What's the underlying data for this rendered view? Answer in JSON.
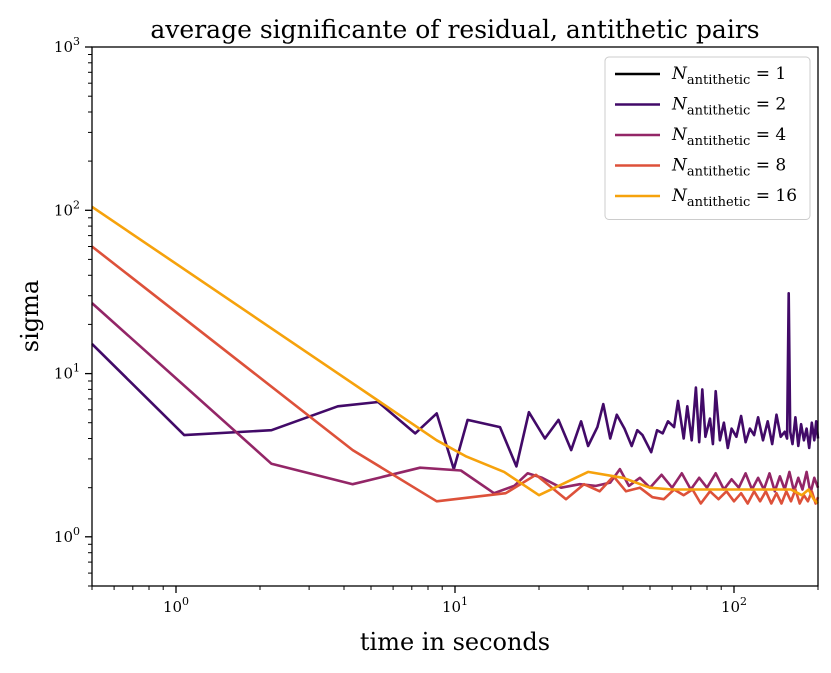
{
  "chart_data": {
    "type": "line",
    "title": "average significante of residual, antithetic pairs",
    "xlabel": "time in seconds",
    "ylabel": "sigma",
    "xscale": "log",
    "yscale": "log",
    "xlim": [
      0.5,
      200
    ],
    "ylim": [
      0.5,
      1000
    ],
    "x_ticks": [
      {
        "value": 1,
        "base": "10",
        "exp": "0"
      },
      {
        "value": 10,
        "base": "10",
        "exp": "1"
      },
      {
        "value": 100,
        "base": "10",
        "exp": "2"
      }
    ],
    "y_ticks": [
      {
        "value": 1,
        "base": "10",
        "exp": "0"
      },
      {
        "value": 10,
        "base": "10",
        "exp": "1"
      },
      {
        "value": 100,
        "base": "10",
        "exp": "2"
      },
      {
        "value": 1000,
        "base": "10",
        "exp": "3"
      }
    ],
    "legend_location": "top-right",
    "series": [
      {
        "name": "N_antithetic = 1",
        "label_main": "N",
        "label_sub": "antithetic",
        "label_value": " = 1",
        "color": "#000000",
        "points": []
      },
      {
        "name": "N_antithetic = 2",
        "label_main": "N",
        "label_sub": "antithetic",
        "label_value": " = 2",
        "color": "#420a68",
        "points": [
          [
            0.5,
            15.2
          ],
          [
            1.07,
            4.2
          ],
          [
            2.2,
            4.5
          ],
          [
            3.8,
            6.3
          ],
          [
            5.3,
            6.7
          ],
          [
            7.2,
            4.3
          ],
          [
            8.6,
            5.7
          ],
          [
            9.9,
            2.6
          ],
          [
            11.1,
            5.2
          ],
          [
            14.5,
            4.7
          ],
          [
            16.6,
            2.7
          ],
          [
            18.4,
            5.8
          ],
          [
            21.0,
            4.0
          ],
          [
            23.5,
            5.2
          ],
          [
            26.1,
            3.4
          ],
          [
            28.3,
            5.1
          ],
          [
            30.0,
            3.6
          ],
          [
            32.4,
            4.7
          ],
          [
            34.0,
            6.5
          ],
          [
            36.0,
            4.0
          ],
          [
            38.0,
            5.6
          ],
          [
            40.5,
            4.6
          ],
          [
            43.0,
            3.6
          ],
          [
            45.0,
            4.5
          ],
          [
            47.0,
            4.2
          ],
          [
            50.5,
            3.3
          ],
          [
            53.0,
            4.5
          ],
          [
            55.5,
            4.3
          ],
          [
            58.0,
            5.1
          ],
          [
            61.0,
            4.7
          ],
          [
            63.0,
            6.8
          ],
          [
            66.0,
            4.0
          ],
          [
            68.0,
            6.3
          ],
          [
            70.5,
            3.9
          ],
          [
            73.0,
            8.2
          ],
          [
            75.0,
            3.8
          ],
          [
            77.0,
            8.0
          ],
          [
            79.0,
            4.1
          ],
          [
            82.0,
            5.3
          ],
          [
            84.0,
            3.7
          ],
          [
            86.0,
            7.8
          ],
          [
            89.0,
            3.9
          ],
          [
            92.0,
            5.0
          ],
          [
            95.0,
            3.5
          ],
          [
            98.0,
            4.6
          ],
          [
            102.0,
            4.1
          ],
          [
            106.0,
            5.5
          ],
          [
            110.0,
            3.8
          ],
          [
            114.0,
            4.6
          ],
          [
            118.0,
            4.2
          ],
          [
            122.0,
            5.4
          ],
          [
            127.0,
            3.9
          ],
          [
            132.0,
            5.1
          ],
          [
            137.0,
            3.7
          ],
          [
            142.0,
            5.6
          ],
          [
            147.0,
            4.1
          ],
          [
            152.0,
            4.4
          ],
          [
            155.0,
            4.0
          ],
          [
            157.0,
            31.0
          ],
          [
            159.0,
            4.4
          ],
          [
            162.0,
            3.7
          ],
          [
            166.0,
            5.4
          ],
          [
            170.0,
            3.6
          ],
          [
            174.0,
            4.9
          ],
          [
            178.0,
            3.9
          ],
          [
            182.0,
            4.6
          ],
          [
            186.0,
            3.5
          ],
          [
            190.0,
            5.0
          ],
          [
            194.0,
            3.9
          ],
          [
            197.0,
            5.1
          ],
          [
            200.0,
            4.0
          ]
        ]
      },
      {
        "name": "N_antithetic = 4",
        "label_main": "N",
        "label_sub": "antithetic",
        "label_value": " = 4",
        "color": "#932667",
        "points": [
          [
            0.5,
            27.0
          ],
          [
            2.2,
            2.8
          ],
          [
            4.3,
            2.1
          ],
          [
            7.5,
            2.65
          ],
          [
            10.5,
            2.55
          ],
          [
            13.8,
            1.85
          ],
          [
            16.3,
            2.05
          ],
          [
            18.2,
            2.45
          ],
          [
            20.5,
            2.3
          ],
          [
            24.0,
            2.0
          ],
          [
            28.0,
            2.1
          ],
          [
            32.0,
            2.05
          ],
          [
            36.0,
            2.15
          ],
          [
            39.0,
            2.6
          ],
          [
            42.0,
            2.05
          ],
          [
            46.0,
            2.3
          ],
          [
            50.0,
            2.0
          ],
          [
            55.0,
            2.4
          ],
          [
            60.0,
            2.0
          ],
          [
            65.0,
            2.45
          ],
          [
            70.0,
            1.95
          ],
          [
            75.0,
            2.3
          ],
          [
            80.0,
            2.0
          ],
          [
            86.0,
            2.45
          ],
          [
            92.0,
            1.95
          ],
          [
            98.0,
            2.25
          ],
          [
            104.0,
            2.0
          ],
          [
            110.0,
            2.45
          ],
          [
            116.0,
            1.95
          ],
          [
            122.0,
            2.3
          ],
          [
            128.0,
            1.95
          ],
          [
            134.0,
            2.45
          ],
          [
            140.0,
            1.9
          ],
          [
            146.0,
            2.35
          ],
          [
            152.0,
            1.95
          ],
          [
            158.0,
            2.5
          ],
          [
            164.0,
            1.9
          ],
          [
            170.0,
            2.3
          ],
          [
            176.0,
            1.95
          ],
          [
            182.0,
            2.5
          ],
          [
            188.0,
            1.85
          ],
          [
            194.0,
            2.3
          ],
          [
            200.0,
            2.0
          ]
        ]
      },
      {
        "name": "N_antithetic = 8",
        "label_main": "N",
        "label_sub": "antithetic",
        "label_value": " = 8",
        "color": "#dd513a",
        "points": [
          [
            0.5,
            60.0
          ],
          [
            4.3,
            3.4
          ],
          [
            8.6,
            1.65
          ],
          [
            15.2,
            1.85
          ],
          [
            19.5,
            2.4
          ],
          [
            25.0,
            1.7
          ],
          [
            29.0,
            2.1
          ],
          [
            33.0,
            1.9
          ],
          [
            37.0,
            2.35
          ],
          [
            41.0,
            1.9
          ],
          [
            46.0,
            2.0
          ],
          [
            51.0,
            1.75
          ],
          [
            56.0,
            1.7
          ],
          [
            61.0,
            1.95
          ],
          [
            66.0,
            1.8
          ],
          [
            71.0,
            1.95
          ],
          [
            76.0,
            1.6
          ],
          [
            82.0,
            1.9
          ],
          [
            88.0,
            1.7
          ],
          [
            94.0,
            1.9
          ],
          [
            100.0,
            1.65
          ],
          [
            106.0,
            1.85
          ],
          [
            112.0,
            1.6
          ],
          [
            118.0,
            1.9
          ],
          [
            124.0,
            1.65
          ],
          [
            130.0,
            1.9
          ],
          [
            136.0,
            1.6
          ],
          [
            142.0,
            1.85
          ],
          [
            148.0,
            1.6
          ],
          [
            154.0,
            1.9
          ],
          [
            160.0,
            1.65
          ],
          [
            166.0,
            1.95
          ],
          [
            172.0,
            1.6
          ],
          [
            178.0,
            1.8
          ],
          [
            184.0,
            1.65
          ],
          [
            190.0,
            1.9
          ],
          [
            196.0,
            1.6
          ],
          [
            200.0,
            1.75
          ]
        ]
      },
      {
        "name": "N_antithetic = 16",
        "label_main": "N",
        "label_sub": "antithetic",
        "label_value": " = 16",
        "color": "#f6a20c",
        "points": [
          [
            0.5,
            105.0
          ],
          [
            8.6,
            3.9
          ],
          [
            11.0,
            3.1
          ],
          [
            15.0,
            2.5
          ],
          [
            20.0,
            1.8
          ],
          [
            30.0,
            2.5
          ],
          [
            40.0,
            2.3
          ],
          [
            50.0,
            2.0
          ],
          [
            60.0,
            1.95
          ],
          [
            70.0,
            1.95
          ],
          [
            80.0,
            1.95
          ],
          [
            90.0,
            1.95
          ],
          [
            100.0,
            1.95
          ],
          [
            120.0,
            1.95
          ],
          [
            140.0,
            1.95
          ],
          [
            160.0,
            1.95
          ],
          [
            175.0,
            1.8
          ],
          [
            185.0,
            1.95
          ],
          [
            193.0,
            1.7
          ],
          [
            200.0,
            1.6
          ]
        ]
      }
    ]
  }
}
